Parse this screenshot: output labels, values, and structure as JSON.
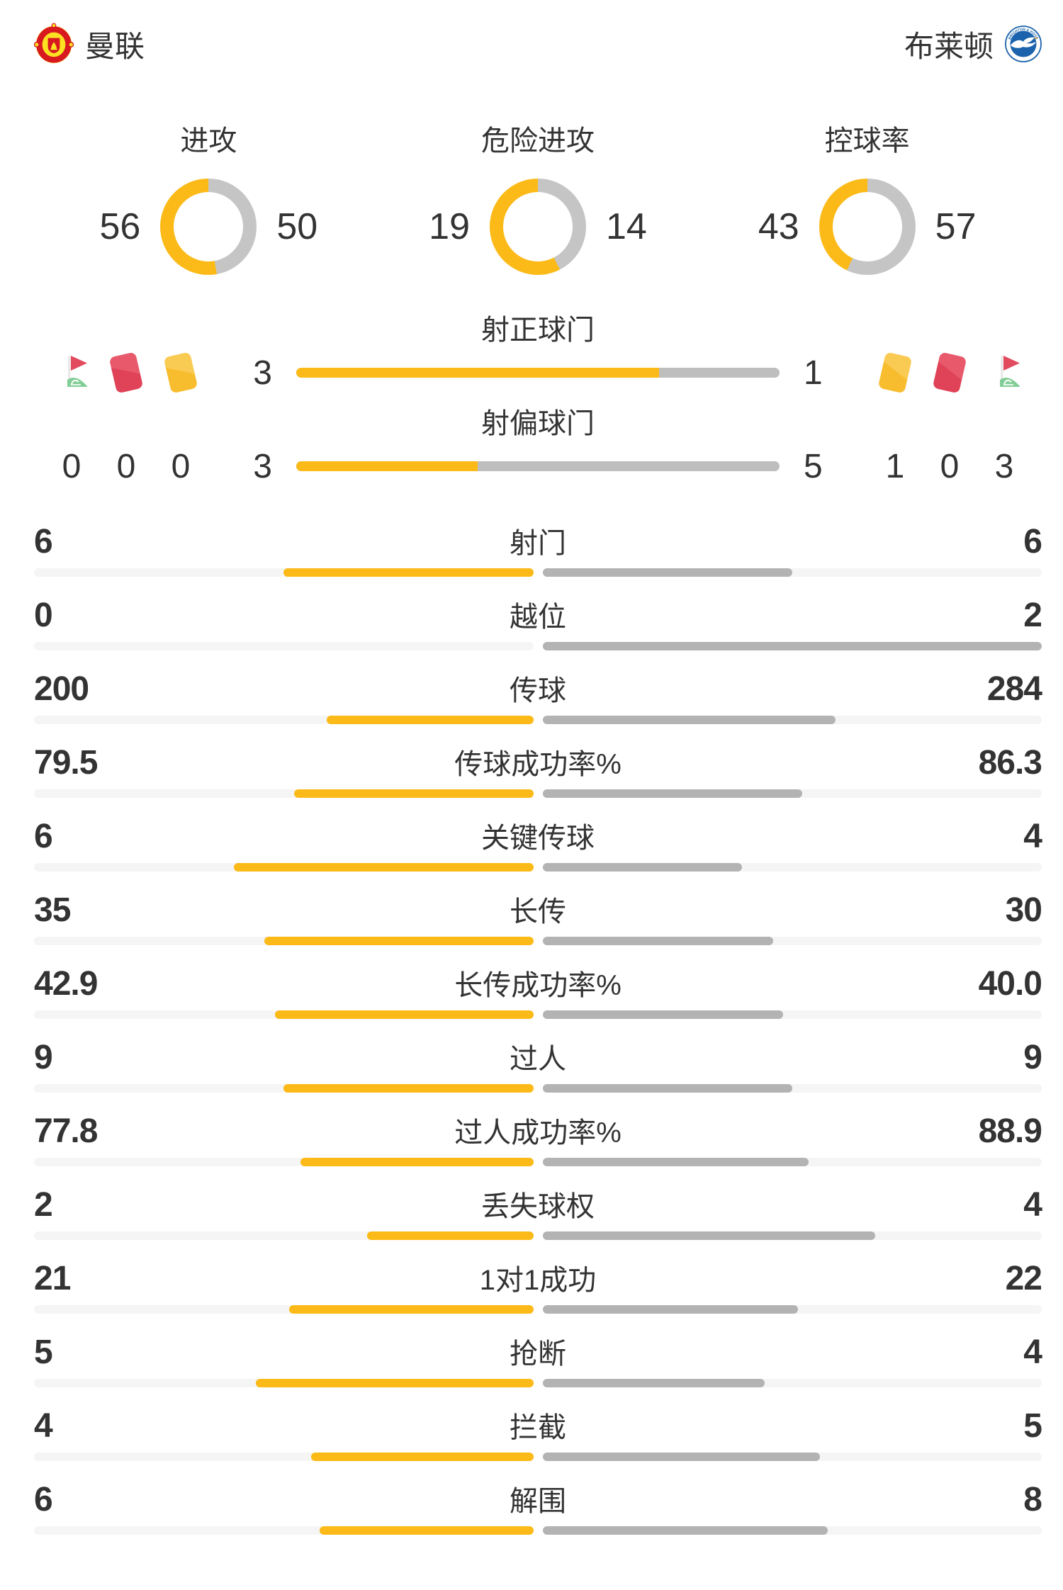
{
  "teams": {
    "home": {
      "name": "曼联"
    },
    "away": {
      "name": "布莱顿"
    }
  },
  "colors": {
    "home": "#FBBA17",
    "donut_away": "#C5C5C5",
    "bar_away": "#B3B3B3",
    "shots_away": "#BEBEBE",
    "track": "#F5F5F5",
    "text": "#333333",
    "card_red": "#E04358",
    "card_yellow": "#F7BD2F",
    "flag_green": "#82CE96",
    "brighton_blue": "#1B63AC",
    "united_red": "#D81920",
    "united_yellow": "#FBE122"
  },
  "donuts": [
    {
      "label": "进攻",
      "home": "56",
      "away": "50"
    },
    {
      "label": "危险进攻",
      "home": "19",
      "away": "14"
    },
    {
      "label": "控球率",
      "home": "43",
      "away": "57"
    }
  ],
  "shots": [
    {
      "label": "射正球门",
      "home": "3",
      "away": "1"
    },
    {
      "label": "射偏球门",
      "home": "3",
      "away": "5"
    }
  ],
  "cards": {
    "home": {
      "corner": "0",
      "red": "0",
      "yellow": "0"
    },
    "away": {
      "yellow": "1",
      "red": "0",
      "corner": "3"
    }
  },
  "stats": [
    {
      "label": "射门",
      "home": "6",
      "away": "6"
    },
    {
      "label": "越位",
      "home": "0",
      "away": "2"
    },
    {
      "label": "传球",
      "home": "200",
      "away": "284"
    },
    {
      "label": "传球成功率%",
      "home": "79.5",
      "away": "86.3"
    },
    {
      "label": "关键传球",
      "home": "6",
      "away": "4"
    },
    {
      "label": "长传",
      "home": "35",
      "away": "30"
    },
    {
      "label": "长传成功率%",
      "home": "42.9",
      "away": "40.0"
    },
    {
      "label": "过人",
      "home": "9",
      "away": "9"
    },
    {
      "label": "过人成功率%",
      "home": "77.8",
      "away": "88.9"
    },
    {
      "label": "丢失球权",
      "home": "2",
      "away": "4"
    },
    {
      "label": "1对1成功",
      "home": "21",
      "away": "22"
    },
    {
      "label": "抢断",
      "home": "5",
      "away": "4"
    },
    {
      "label": "拦截",
      "home": "4",
      "away": "5"
    },
    {
      "label": "解围",
      "home": "6",
      "away": "8"
    }
  ],
  "chart_data": [
    {
      "type": "pie",
      "title": "进攻",
      "categories": [
        "曼联",
        "布莱顿"
      ],
      "values": [
        56,
        50
      ],
      "colors": [
        "#FBBA17",
        "#C5C5C5"
      ],
      "style": "donut",
      "start": "top",
      "home_direction": "counterclockwise"
    },
    {
      "type": "pie",
      "title": "危险进攻",
      "categories": [
        "曼联",
        "布莱顿"
      ],
      "values": [
        19,
        14
      ],
      "colors": [
        "#FBBA17",
        "#C5C5C5"
      ],
      "style": "donut"
    },
    {
      "type": "pie",
      "title": "控球率",
      "categories": [
        "曼联",
        "布莱顿"
      ],
      "values": [
        43,
        57
      ],
      "colors": [
        "#FBBA17",
        "#C5C5C5"
      ],
      "style": "donut"
    },
    {
      "type": "bar",
      "title": "比赛统计对比",
      "orientation": "horizontal-mirrored",
      "categories": [
        "射正球门",
        "射偏球门",
        "射门",
        "越位",
        "传球",
        "传球成功率%",
        "关键传球",
        "长传",
        "长传成功率%",
        "过人",
        "过人成功率%",
        "丢失球权",
        "1对1成功",
        "抢断",
        "拦截",
        "解围"
      ],
      "series": [
        {
          "name": "曼联",
          "color": "#FBBA17",
          "values": [
            3,
            3,
            6,
            0,
            200,
            79.5,
            6,
            35,
            42.9,
            9,
            77.8,
            2,
            21,
            5,
            4,
            6
          ]
        },
        {
          "name": "布莱顿",
          "color": "#B3B3B3",
          "values": [
            1,
            5,
            6,
            2,
            284,
            86.3,
            4,
            30,
            40.0,
            9,
            88.9,
            4,
            22,
            4,
            5,
            8
          ]
        }
      ],
      "note": "每侧条长 = 数值/(双方数值之和) × 半轨道宽"
    },
    {
      "type": "table",
      "title": "角球与红黄牌",
      "categories": [
        "角球",
        "红牌",
        "黄牌"
      ],
      "series": [
        {
          "name": "曼联",
          "values": [
            0,
            0,
            0
          ]
        },
        {
          "name": "布莱顿",
          "values": [
            3,
            0,
            1
          ]
        }
      ]
    }
  ]
}
